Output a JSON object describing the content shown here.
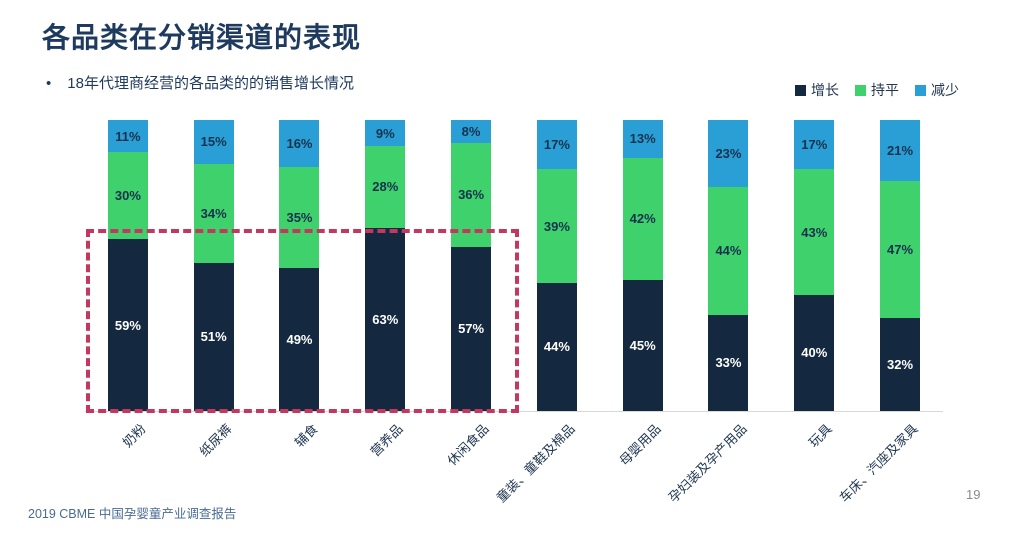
{
  "slide": {
    "title": "各品类在分销渠道的表现",
    "bullet": "18年代理商经营的各品类的的销售增长情况",
    "footer": "2019 CBME 中国孕婴童产业调查报告",
    "page_number": "19"
  },
  "colors": {
    "title_text": "#1e3a5f",
    "growth": "#142940",
    "flat": "#3fd16c",
    "decrease": "#2a9fd6",
    "highlight_box": "#c43860",
    "axis_line": "#d8d8d8"
  },
  "chart_data": {
    "type": "bar",
    "stacked": true,
    "title": "18年代理商经营的各品类的的销售增长情况",
    "categories": [
      "奶粉",
      "纸尿裤",
      "辅食",
      "营养品",
      "休闲食品",
      "童装、童鞋及棉品",
      "母婴用品",
      "孕妇装及孕产用品",
      "玩具",
      "车床、汽座及家具"
    ],
    "series": [
      {
        "name": "增长",
        "color": "#142940",
        "values": [
          59,
          51,
          49,
          63,
          57,
          44,
          45,
          33,
          40,
          32
        ]
      },
      {
        "name": "持平",
        "color": "#3fd16c",
        "values": [
          30,
          34,
          35,
          28,
          36,
          39,
          42,
          44,
          43,
          47
        ]
      },
      {
        "name": "减少",
        "color": "#2a9fd6",
        "values": [
          11,
          15,
          16,
          9,
          8,
          17,
          13,
          23,
          17,
          21
        ]
      }
    ],
    "value_suffix": "%",
    "ylim": [
      0,
      100
    ],
    "grid": false,
    "legend_position": "top-right",
    "highlighted_categories": [
      "奶粉",
      "纸尿裤",
      "辅食",
      "营养品",
      "休闲食品"
    ]
  }
}
